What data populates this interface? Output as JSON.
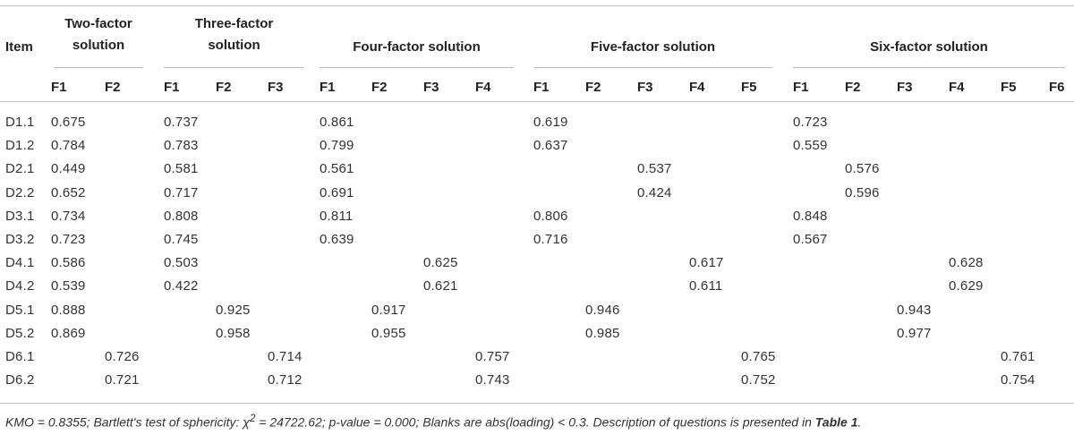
{
  "table": {
    "item_header": "Item",
    "groups": [
      {
        "label_line1": "Two-factor",
        "label_line2": "solution",
        "factors": [
          "F1",
          "F2"
        ]
      },
      {
        "label_line1": "Three-factor",
        "label_line2": "solution",
        "factors": [
          "F1",
          "F2",
          "F3"
        ]
      },
      {
        "label_line1": "Four-factor solution",
        "label_line2": "",
        "factors": [
          "F1",
          "F2",
          "F3",
          "F4"
        ]
      },
      {
        "label_line1": "Five-factor solution",
        "label_line2": "",
        "factors": [
          "F1",
          "F2",
          "F3",
          "F4",
          "F5"
        ]
      },
      {
        "label_line1": "Six-factor solution",
        "label_line2": "",
        "factors": [
          "F1",
          "F2",
          "F3",
          "F4",
          "F5",
          "F6"
        ]
      }
    ],
    "rows": [
      {
        "item": "D1.1",
        "cells": [
          "0.675",
          "",
          "0.737",
          "",
          "",
          "0.861",
          "",
          "",
          "",
          "0.619",
          "",
          "",
          "",
          "",
          "0.723",
          "",
          "",
          "",
          "",
          ""
        ]
      },
      {
        "item": "D1.2",
        "cells": [
          "0.784",
          "",
          "0.783",
          "",
          "",
          "0.799",
          "",
          "",
          "",
          "0.637",
          "",
          "",
          "",
          "",
          "0.559",
          "",
          "",
          "",
          "",
          ""
        ]
      },
      {
        "item": "D2.1",
        "cells": [
          "0.449",
          "",
          "0.581",
          "",
          "",
          "0.561",
          "",
          "",
          "",
          "",
          "",
          "0.537",
          "",
          "",
          "",
          "0.576",
          "",
          "",
          "",
          ""
        ]
      },
      {
        "item": "D2.2",
        "cells": [
          "0.652",
          "",
          "0.717",
          "",
          "",
          "0.691",
          "",
          "",
          "",
          "",
          "",
          "0.424",
          "",
          "",
          "",
          "0.596",
          "",
          "",
          "",
          ""
        ]
      },
      {
        "item": "D3.1",
        "cells": [
          "0.734",
          "",
          "0.808",
          "",
          "",
          "0.811",
          "",
          "",
          "",
          "0.806",
          "",
          "",
          "",
          "",
          "0.848",
          "",
          "",
          "",
          "",
          ""
        ]
      },
      {
        "item": "D3.2",
        "cells": [
          "0.723",
          "",
          "0.745",
          "",
          "",
          "0.639",
          "",
          "",
          "",
          "0.716",
          "",
          "",
          "",
          "",
          "0.567",
          "",
          "",
          "",
          "",
          ""
        ]
      },
      {
        "item": "D4.1",
        "cells": [
          "0.586",
          "",
          "0.503",
          "",
          "",
          "",
          "",
          "0.625",
          "",
          "",
          "",
          "",
          "0.617",
          "",
          "",
          "",
          "",
          "0.628",
          "",
          ""
        ]
      },
      {
        "item": "D4.2",
        "cells": [
          "0.539",
          "",
          "0.422",
          "",
          "",
          "",
          "",
          "0.621",
          "",
          "",
          "",
          "",
          "0.611",
          "",
          "",
          "",
          "",
          "0.629",
          "",
          ""
        ]
      },
      {
        "item": "D5.1",
        "cells": [
          "0.888",
          "",
          "",
          "0.925",
          "",
          "",
          "0.917",
          "",
          "",
          "",
          "0.946",
          "",
          "",
          "",
          "",
          "",
          "0.943",
          "",
          "",
          ""
        ]
      },
      {
        "item": "D5.2",
        "cells": [
          "0.869",
          "",
          "",
          "0.958",
          "",
          "",
          "0.955",
          "",
          "",
          "",
          "0.985",
          "",
          "",
          "",
          "",
          "",
          "0.977",
          "",
          "",
          ""
        ]
      },
      {
        "item": "D6.1",
        "cells": [
          "",
          "0.726",
          "",
          "",
          "0.714",
          "",
          "",
          "",
          "0.757",
          "",
          "",
          "",
          "",
          "0.765",
          "",
          "",
          "",
          "",
          "0.761",
          ""
        ]
      },
      {
        "item": "D6.2",
        "cells": [
          "",
          "0.721",
          "",
          "",
          "0.712",
          "",
          "",
          "",
          "0.743",
          "",
          "",
          "",
          "",
          "0.752",
          "",
          "",
          "",
          "",
          "0.754",
          ""
        ]
      }
    ]
  },
  "footnote": {
    "part1": "KMO = 0.8355; Bartlett's test of sphericity: χ",
    "sup": "2",
    "part2": " = 24722.62; p-value = 0.000; Blanks are abs(loading) < 0.3. Description of questions is presented in ",
    "ref": "Table 1",
    "part3": "."
  }
}
